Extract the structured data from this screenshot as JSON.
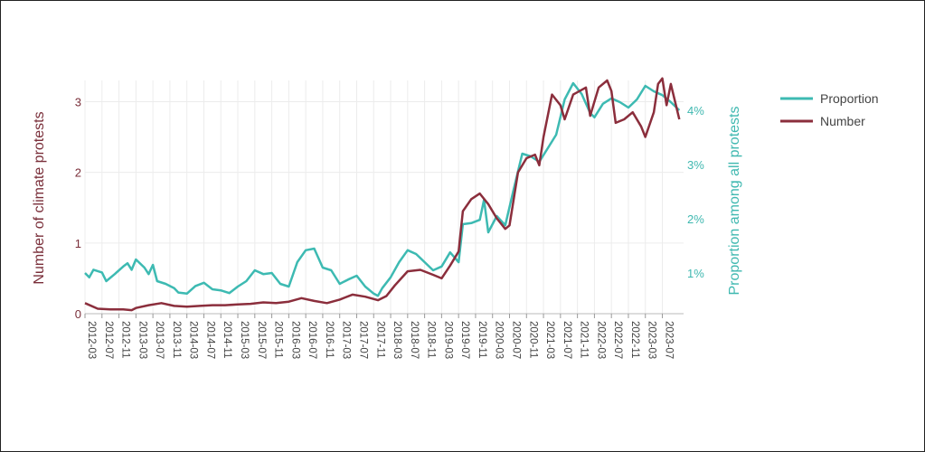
{
  "chart_data": {
    "type": "line",
    "title": "",
    "xlabel": "",
    "ylabel": "Number of climate protests",
    "y2label": "Proportion among all protests",
    "ylim": [
      0,
      3.3
    ],
    "y2lim": [
      0.25,
      4.55
    ],
    "yticks": [
      "0",
      "1",
      "2",
      "3"
    ],
    "y2ticks": [
      "1%",
      "2%",
      "3%",
      "4%"
    ],
    "x_ticks": [
      "2012-03",
      "2012-07",
      "2012-11",
      "2013-03",
      "2013-07",
      "2013-11",
      "2014-03",
      "2014-07",
      "2014-11",
      "2015-03",
      "2015-07",
      "2015-11",
      "2016-03",
      "2016-07",
      "2016-11",
      "2017-03",
      "2017-07",
      "2017-11",
      "2018-03",
      "2018-07",
      "2018-11",
      "2019-03",
      "2019-07",
      "2019-11",
      "2020-03",
      "2020-07",
      "2020-11",
      "2021-03",
      "2021-07",
      "2021-11",
      "2022-03",
      "2022-07",
      "2022-11",
      "2023-03",
      "2023-07"
    ],
    "legend": {
      "placement": "top-right",
      "entries": [
        "Proportion",
        "Number"
      ]
    },
    "colors": {
      "number": "#8b2e3c",
      "proportion": "#3dbab2",
      "grid": "#ececec"
    },
    "series": [
      {
        "name": "Number",
        "axis": "left",
        "points": [
          [
            "2012-03",
            0.15
          ],
          [
            "2012-06",
            0.07
          ],
          [
            "2012-09",
            0.06
          ],
          [
            "2012-12",
            0.06
          ],
          [
            "2013-02",
            0.05
          ],
          [
            "2013-03",
            0.08
          ],
          [
            "2013-06",
            0.12
          ],
          [
            "2013-09",
            0.15
          ],
          [
            "2013-12",
            0.11
          ],
          [
            "2014-03",
            0.1
          ],
          [
            "2014-06",
            0.11
          ],
          [
            "2014-09",
            0.12
          ],
          [
            "2014-12",
            0.12
          ],
          [
            "2015-03",
            0.13
          ],
          [
            "2015-06",
            0.14
          ],
          [
            "2015-09",
            0.16
          ],
          [
            "2015-12",
            0.15
          ],
          [
            "2016-03",
            0.17
          ],
          [
            "2016-06",
            0.22
          ],
          [
            "2016-09",
            0.18
          ],
          [
            "2016-12",
            0.15
          ],
          [
            "2017-03",
            0.2
          ],
          [
            "2017-06",
            0.27
          ],
          [
            "2017-09",
            0.24
          ],
          [
            "2017-12",
            0.19
          ],
          [
            "2018-02",
            0.25
          ],
          [
            "2018-04",
            0.4
          ],
          [
            "2018-07",
            0.6
          ],
          [
            "2018-10",
            0.62
          ],
          [
            "2019-01",
            0.55
          ],
          [
            "2019-03",
            0.5
          ],
          [
            "2019-05",
            0.68
          ],
          [
            "2019-07",
            0.88
          ],
          [
            "2019-08",
            1.45
          ],
          [
            "2019-10",
            1.62
          ],
          [
            "2019-12",
            1.7
          ],
          [
            "2020-02",
            1.55
          ],
          [
            "2020-04",
            1.35
          ],
          [
            "2020-06",
            1.2
          ],
          [
            "2020-07",
            1.25
          ],
          [
            "2020-09",
            2.0
          ],
          [
            "2020-11",
            2.2
          ],
          [
            "2021-01",
            2.25
          ],
          [
            "2021-02",
            2.1
          ],
          [
            "2021-03",
            2.5
          ],
          [
            "2021-05",
            3.1
          ],
          [
            "2021-07",
            2.95
          ],
          [
            "2021-08",
            2.75
          ],
          [
            "2021-10",
            3.1
          ],
          [
            "2022-01",
            3.2
          ],
          [
            "2022-02",
            2.8
          ],
          [
            "2022-04",
            3.2
          ],
          [
            "2022-06",
            3.3
          ],
          [
            "2022-07",
            3.15
          ],
          [
            "2022-08",
            2.7
          ],
          [
            "2022-10",
            2.75
          ],
          [
            "2022-12",
            2.85
          ],
          [
            "2023-02",
            2.65
          ],
          [
            "2023-03",
            2.5
          ],
          [
            "2023-05",
            2.85
          ],
          [
            "2023-06",
            3.25
          ],
          [
            "2023-07",
            3.33
          ],
          [
            "2023-08",
            2.95
          ],
          [
            "2023-09",
            3.25
          ],
          [
            "2023-11",
            2.75
          ]
        ]
      },
      {
        "name": "Proportion",
        "axis": "right",
        "points": [
          [
            "2012-03",
            1.0
          ],
          [
            "2012-04",
            0.92
          ],
          [
            "2012-05",
            1.06
          ],
          [
            "2012-07",
            1.01
          ],
          [
            "2012-08",
            0.85
          ],
          [
            "2012-10",
            0.98
          ],
          [
            "2012-12",
            1.12
          ],
          [
            "2013-01",
            1.18
          ],
          [
            "2013-02",
            1.06
          ],
          [
            "2013-03",
            1.25
          ],
          [
            "2013-05",
            1.1
          ],
          [
            "2013-06",
            0.98
          ],
          [
            "2013-07",
            1.15
          ],
          [
            "2013-08",
            0.85
          ],
          [
            "2013-10",
            0.8
          ],
          [
            "2013-12",
            0.72
          ],
          [
            "2014-01",
            0.64
          ],
          [
            "2014-03",
            0.62
          ],
          [
            "2014-05",
            0.76
          ],
          [
            "2014-07",
            0.82
          ],
          [
            "2014-09",
            0.7
          ],
          [
            "2014-11",
            0.68
          ],
          [
            "2015-01",
            0.63
          ],
          [
            "2015-03",
            0.75
          ],
          [
            "2015-05",
            0.85
          ],
          [
            "2015-07",
            1.05
          ],
          [
            "2015-09",
            0.98
          ],
          [
            "2015-11",
            1.0
          ],
          [
            "2016-01",
            0.8
          ],
          [
            "2016-03",
            0.75
          ],
          [
            "2016-05",
            1.2
          ],
          [
            "2016-07",
            1.42
          ],
          [
            "2016-09",
            1.45
          ],
          [
            "2016-11",
            1.1
          ],
          [
            "2017-01",
            1.05
          ],
          [
            "2017-03",
            0.8
          ],
          [
            "2017-05",
            0.88
          ],
          [
            "2017-07",
            0.95
          ],
          [
            "2017-09",
            0.75
          ],
          [
            "2017-11",
            0.62
          ],
          [
            "2017-12",
            0.58
          ],
          [
            "2018-01",
            0.72
          ],
          [
            "2018-03",
            0.92
          ],
          [
            "2018-05",
            1.2
          ],
          [
            "2018-07",
            1.42
          ],
          [
            "2018-09",
            1.35
          ],
          [
            "2018-11",
            1.2
          ],
          [
            "2019-01",
            1.05
          ],
          [
            "2019-03",
            1.12
          ],
          [
            "2019-05",
            1.38
          ],
          [
            "2019-07",
            1.2
          ],
          [
            "2019-08",
            1.9
          ],
          [
            "2019-10",
            1.92
          ],
          [
            "2019-12",
            1.98
          ],
          [
            "2020-01",
            2.35
          ],
          [
            "2020-02",
            1.75
          ],
          [
            "2020-04",
            2.05
          ],
          [
            "2020-06",
            1.88
          ],
          [
            "2020-08",
            2.55
          ],
          [
            "2020-10",
            3.2
          ],
          [
            "2020-12",
            3.15
          ],
          [
            "2021-02",
            3.05
          ],
          [
            "2021-04",
            3.3
          ],
          [
            "2021-06",
            3.55
          ],
          [
            "2021-08",
            4.2
          ],
          [
            "2021-10",
            4.5
          ],
          [
            "2021-12",
            4.3
          ],
          [
            "2022-02",
            3.95
          ],
          [
            "2022-03",
            3.87
          ],
          [
            "2022-05",
            4.12
          ],
          [
            "2022-07",
            4.22
          ],
          [
            "2022-09",
            4.15
          ],
          [
            "2022-11",
            4.05
          ],
          [
            "2023-01",
            4.2
          ],
          [
            "2023-03",
            4.45
          ],
          [
            "2023-05",
            4.35
          ],
          [
            "2023-07",
            4.28
          ],
          [
            "2023-09",
            4.15
          ],
          [
            "2023-11",
            4.0
          ]
        ]
      }
    ]
  }
}
